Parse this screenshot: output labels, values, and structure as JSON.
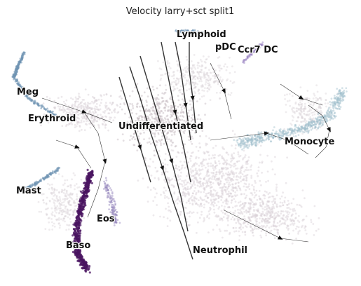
{
  "chart_data": {
    "type": "scatter",
    "title": "Velocity larry+sct split1",
    "xlabel": "",
    "ylabel": "",
    "grid": false,
    "axes_visible": false,
    "overlay": "velocity streamlines with arrowheads",
    "colors": {
      "background_cells": "#d8cfd4",
      "progenitor": "#c3b7be",
      "lineage_blue": "#6f93b3",
      "monocyte": "#9fbfcb",
      "baso": "#4a1460",
      "eos": "#8d7fb8",
      "pdc": "#9b86c4",
      "streamline": "#111111"
    },
    "cluster_labels": [
      {
        "label": "Lymphoid"
      },
      {
        "label": "pDC"
      },
      {
        "label": "Ccr7 DC"
      },
      {
        "label": "Meg"
      },
      {
        "label": "Erythroid"
      },
      {
        "label": "Undifferentiated"
      },
      {
        "label": "Monocyte"
      },
      {
        "label": "Mast"
      },
      {
        "label": "Eos"
      },
      {
        "label": "Baso"
      },
      {
        "label": "Neutrophil"
      }
    ]
  }
}
